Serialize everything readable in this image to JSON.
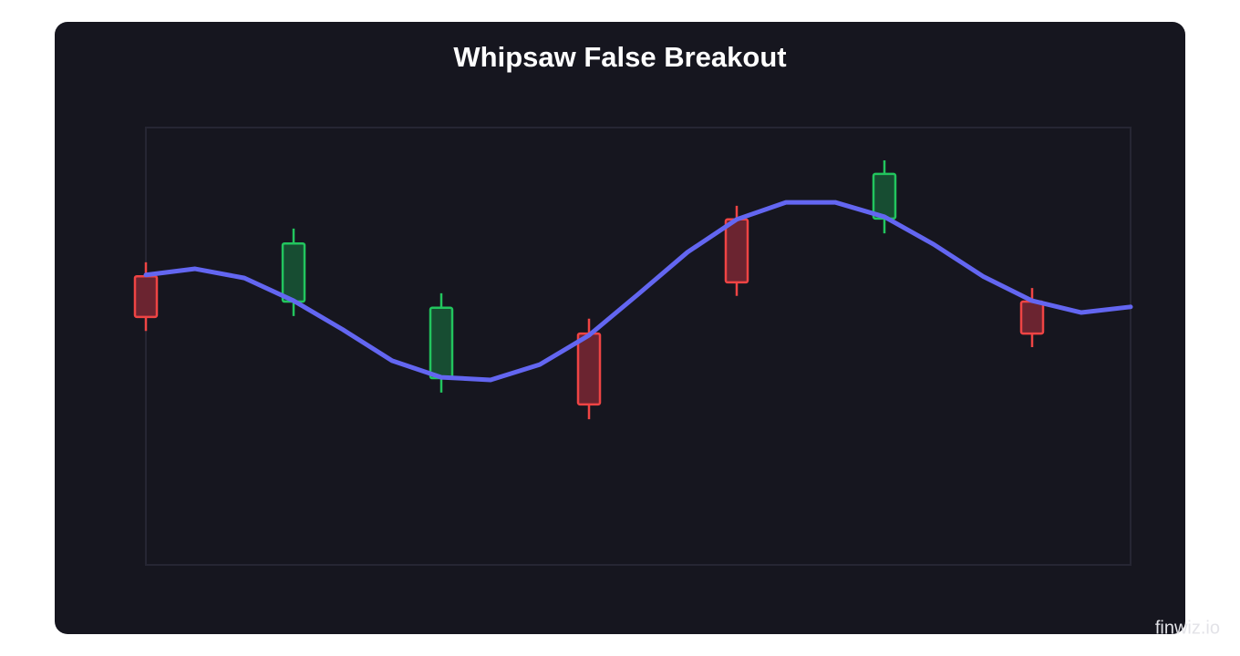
{
  "chart_data": {
    "type": "candlestick",
    "title": "Whipsaw False Breakout",
    "categories": [
      null,
      null,
      null,
      null,
      null,
      null,
      null,
      null,
      null,
      null,
      null,
      null,
      null,
      null,
      null,
      null,
      null,
      null,
      null,
      null,
      null
    ],
    "ylim": [
      0,
      100
    ],
    "line": {
      "color": "#6366f1",
      "values": [
        66.3,
        67.7,
        65.6,
        60.4,
        53.8,
        46.7,
        42.9,
        42.3,
        45.8,
        52.5,
        61.9,
        71.5,
        79.0,
        82.9,
        82.9,
        79.6,
        73.3,
        66.0,
        60.4,
        57.7,
        59.0
      ]
    },
    "open": [
      66.0,
      null,
      null,
      60.2,
      null,
      null,
      42.7,
      null,
      null,
      52.9,
      null,
      null,
      79.0,
      null,
      null,
      79.2,
      null,
      null,
      60.2,
      null,
      null
    ],
    "high": [
      69.2,
      null,
      null,
      76.9,
      null,
      null,
      62.1,
      null,
      null,
      56.3,
      null,
      null,
      82.1,
      null,
      null,
      92.5,
      null,
      null,
      63.3,
      null,
      null
    ],
    "low": [
      53.5,
      null,
      null,
      56.9,
      null,
      null,
      39.4,
      null,
      null,
      33.3,
      null,
      null,
      61.5,
      null,
      null,
      75.8,
      null,
      null,
      49.8,
      null,
      null
    ],
    "close": [
      56.7,
      null,
      null,
      73.5,
      null,
      null,
      58.8,
      null,
      null,
      36.7,
      null,
      null,
      64.6,
      null,
      null,
      89.4,
      null,
      null,
      52.9,
      null,
      null
    ],
    "up_color": "#22c55e",
    "down_color": "#ef4444"
  },
  "watermark": "finwiz.io"
}
